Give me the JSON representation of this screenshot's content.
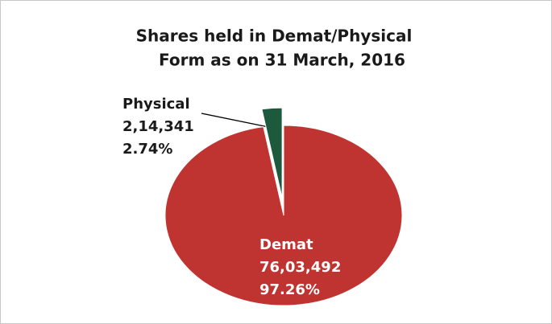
{
  "chart_data": {
    "type": "pie",
    "title": [
      "Shares held in Demat/Physical",
      "Form as on 31 March, 2016"
    ],
    "categories": [
      "Demat",
      "Physical"
    ],
    "values": [
      97.26,
      2.74
    ],
    "value_labels": [
      "97.26%",
      "2.74%"
    ],
    "counts": [
      7603492,
      214341
    ],
    "count_labels": [
      "76,03,492",
      "2,14,341"
    ],
    "colors": [
      "#bf3330",
      "#1d5a3d"
    ],
    "exploded": [
      "Physical"
    ]
  }
}
